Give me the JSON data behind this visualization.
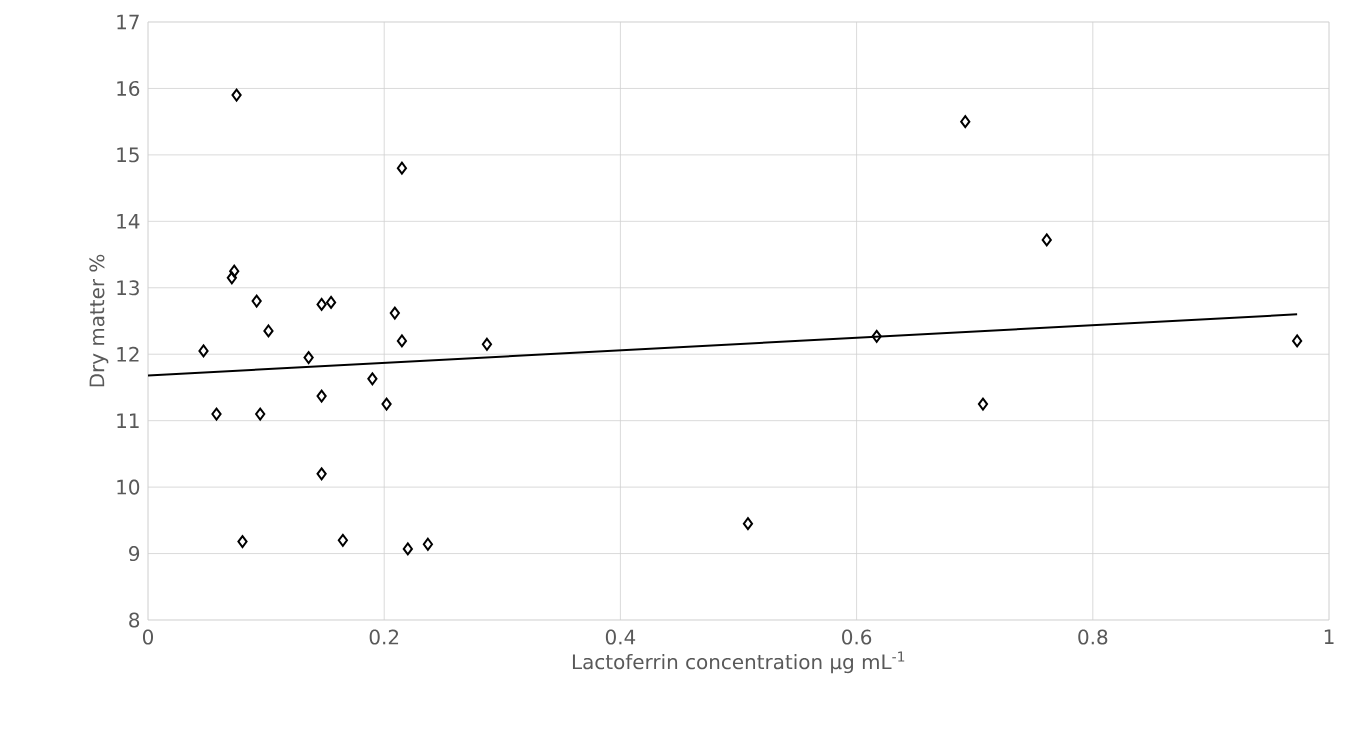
{
  "chart_data": {
    "type": "scatter",
    "xlabel": "Lactoferrin concentration μg mL$^{-1}$",
    "ylabel": "Dry matter %",
    "xlim": [
      0,
      1
    ],
    "xticks": [
      0,
      0.2,
      0.4,
      0.6,
      0.8,
      1
    ],
    "ylim": [
      8,
      17
    ],
    "yticks": [
      8,
      9,
      10,
      11,
      12,
      13,
      14,
      15,
      16,
      17
    ],
    "grid": true,
    "marker": "diamond",
    "series": [
      {
        "color": "#000000",
        "x": [
          0.047,
          0.058,
          0.075,
          0.073,
          0.071,
          0.092,
          0.102,
          0.095,
          0.08,
          0.136,
          0.147,
          0.155,
          0.147,
          0.147,
          0.165,
          0.19,
          0.202,
          0.209,
          0.215,
          0.215,
          0.22,
          0.237,
          0.287,
          0.508,
          0.617,
          0.692,
          0.707,
          0.761,
          0.973
        ],
        "values": [
          12.05,
          11.1,
          15.9,
          13.25,
          13.15,
          12.8,
          12.35,
          11.1,
          9.18,
          11.95,
          12.75,
          12.78,
          11.37,
          10.2,
          9.2,
          11.63,
          11.25,
          12.62,
          12.2,
          14.8,
          9.07,
          9.14,
          12.15,
          9.45,
          12.27,
          15.5,
          11.25,
          13.72,
          12.2
        ]
      },
      {
        "type": "line",
        "color": "#000000",
        "marker": "none",
        "line_style": "solid",
        "x": [
          0,
          0.973
        ],
        "values": [
          11.68,
          12.6
        ]
      }
    ]
  }
}
